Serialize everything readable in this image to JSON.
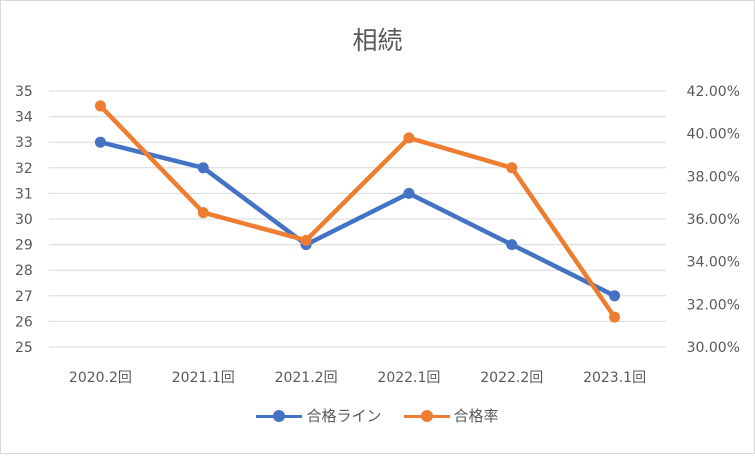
{
  "chart_data": {
    "type": "line",
    "title": "相続",
    "categories": [
      "2020.2回",
      "2021.1回",
      "2021.2回",
      "2022.1回",
      "2022.2回",
      "2023.1回"
    ],
    "series": [
      {
        "name": "合格ライン",
        "axis": "left",
        "color": "#4472C4",
        "values": [
          33,
          32,
          29,
          31,
          29,
          27
        ]
      },
      {
        "name": "合格率",
        "axis": "right",
        "color": "#ED7D31",
        "values": [
          0.413,
          0.363,
          0.35,
          0.398,
          0.384,
          0.314
        ]
      }
    ],
    "y_left": {
      "min": 25,
      "max": 35,
      "ticks": [
        "25",
        "26",
        "27",
        "28",
        "29",
        "30",
        "31",
        "32",
        "33",
        "34",
        "35"
      ]
    },
    "y_right": {
      "min": 0.3,
      "max": 0.42,
      "ticks": [
        "30.00%",
        "32.00%",
        "34.00%",
        "36.00%",
        "38.00%",
        "40.00%",
        "42.00%"
      ]
    },
    "grid": true,
    "legend_position": "bottom"
  }
}
